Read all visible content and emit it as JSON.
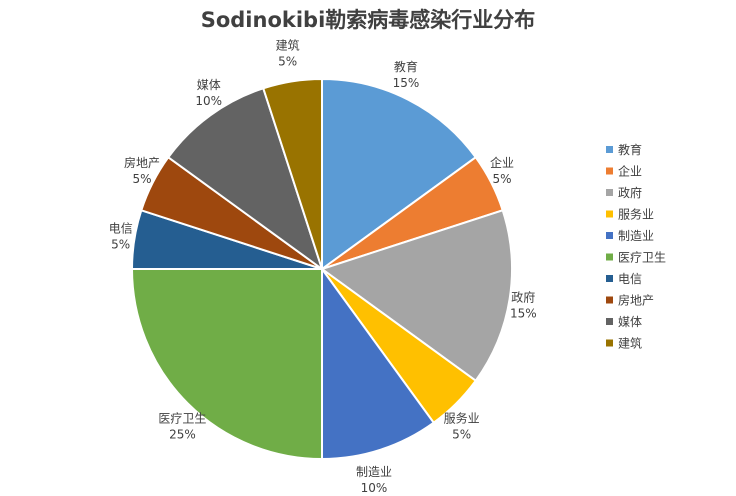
{
  "chart_data": {
    "type": "pie",
    "title": "Sodinokibi勒索病毒感染行业分布",
    "legend_position": "right",
    "slices": [
      {
        "name": "教育",
        "value": 15,
        "label": "15%",
        "color": "#5B9BD5"
      },
      {
        "name": "企业",
        "value": 5,
        "label": "5%",
        "color": "#ED7D31"
      },
      {
        "name": "政府",
        "value": 15,
        "label": "15%",
        "color": "#A5A5A5"
      },
      {
        "name": "服务业",
        "value": 5,
        "label": "5%",
        "color": "#FFC000"
      },
      {
        "name": "制造业",
        "value": 10,
        "label": "10%",
        "color": "#4472C4"
      },
      {
        "name": "医疗卫生",
        "value": 25,
        "label": "25%",
        "color": "#70AD47"
      },
      {
        "name": "电信",
        "value": 5,
        "label": "5%",
        "color": "#255E91"
      },
      {
        "name": "房地产",
        "value": 5,
        "label": "5%",
        "color": "#9E480E"
      },
      {
        "name": "媒体",
        "value": 10,
        "label": "10%",
        "color": "#636363"
      },
      {
        "name": "建筑",
        "value": 5,
        "label": "5%",
        "color": "#997300"
      }
    ]
  }
}
